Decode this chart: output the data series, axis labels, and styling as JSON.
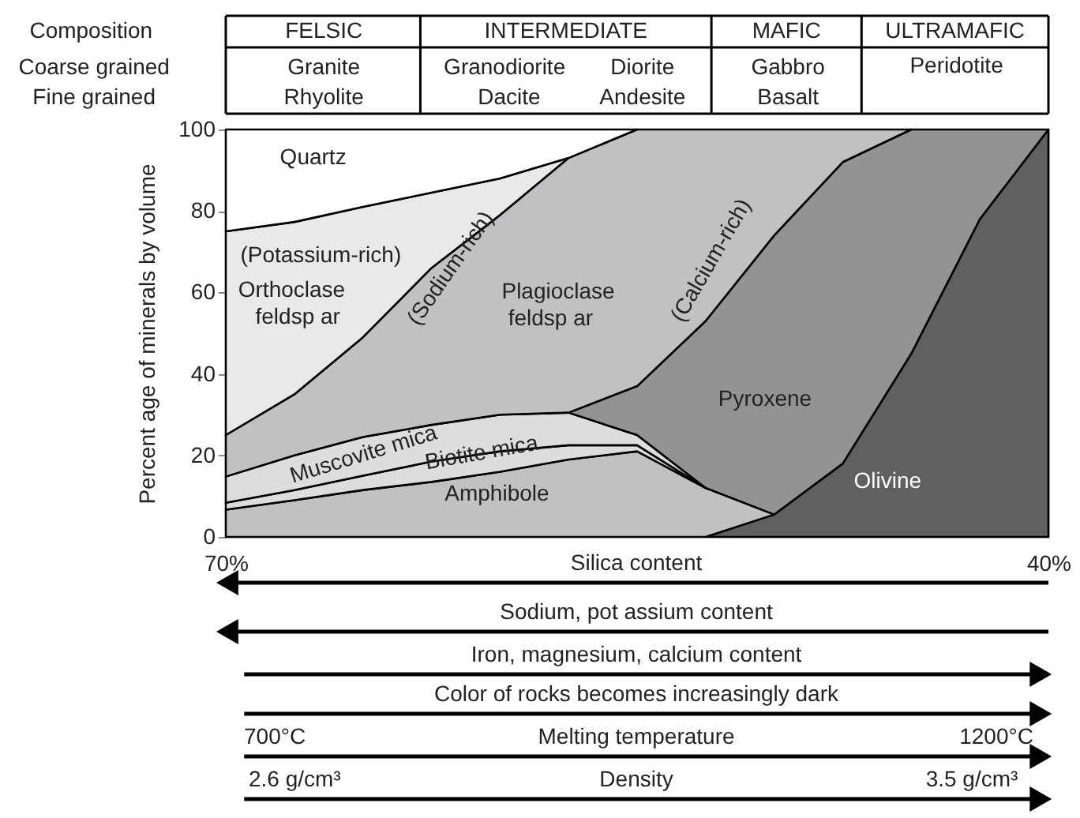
{
  "chart_data": {
    "type": "area",
    "stacked": true,
    "ylabel": "Percent age of minerals by volume",
    "x": [
      70,
      67.5,
      65,
      62.5,
      60,
      57.5,
      55,
      52.5,
      50,
      47.5,
      45,
      42.5,
      40
    ],
    "xlim": [
      70,
      40
    ],
    "xticks": [
      {
        "value": 70,
        "label": "70%"
      },
      {
        "value": 40,
        "label": "40%"
      }
    ],
    "ylim": [
      0,
      100
    ],
    "yticks": [
      0,
      20,
      40,
      60,
      80,
      100
    ],
    "legend": false,
    "series": [
      {
        "color": "#5f6062",
        "values": [
          null,
          null,
          null,
          null,
          null,
          null,
          null,
          0,
          5.5,
          18,
          45,
          78,
          100
        ]
      },
      {
        "color": "#c0c1c3",
        "values": [
          6.7,
          9,
          11.5,
          13.5,
          16,
          19,
          21,
          12,
          0,
          null,
          null,
          null,
          null
        ]
      },
      {
        "color": "#dcdddf",
        "values": [
          1.7,
          2.5,
          3.5,
          5,
          5,
          3.5,
          1.5,
          0,
          null,
          null,
          null,
          null,
          null
        ]
      },
      {
        "color": "#dcdddf",
        "values": [
          6.4,
          8.5,
          9.5,
          9,
          9,
          8,
          2.5,
          0,
          null,
          null,
          null,
          null,
          null
        ]
      },
      {
        "color": "#929395",
        "values": [
          null,
          null,
          null,
          null,
          null,
          0,
          12,
          41,
          68.5,
          74,
          55,
          22,
          0
        ]
      },
      {
        "color": "#c0c1c3",
        "values": [
          10.2,
          15,
          24.5,
          38.5,
          49,
          62.5,
          63,
          47,
          26,
          8,
          0,
          null,
          null
        ]
      },
      {
        "color": "#e8e9e9",
        "values": [
          50,
          42.3,
          32,
          18.5,
          9,
          0,
          null,
          null,
          null,
          null,
          null,
          null,
          null
        ]
      },
      {
        "color": "#ffffff",
        "values": [
          25,
          22.7,
          19,
          15.5,
          12,
          7,
          0,
          null,
          null,
          null,
          null,
          null,
          null
        ]
      }
    ],
    "annotations": [
      "Quartz",
      "(Potassium-rich)",
      "Orthoclase",
      "feldsp ar",
      "(Sodium-rich)",
      "Plagioclase",
      "feldsp ar",
      "(Calcium-rich)",
      "Pyroxene",
      "Olivine",
      "Muscovite mica",
      "Biotite mica",
      "Amphibole",
      "Composition",
      "Coarse grained",
      "Fine grained",
      "FELSIC",
      "INTERMEDIATE",
      "MAFIC",
      "ULTRAMAFIC",
      "Granite",
      "Rhyolite",
      "Granodiorite",
      "Dacite",
      "Diorite",
      "Andesite",
      "Gabbro",
      "Basalt",
      "Peridotite",
      "Silica content",
      "Sodium, pot assium content",
      "Iron, magnesium, calcium content",
      "Color of rocks becomes increasingly dark",
      "Melting temperature",
      "700°C",
      "1200°C",
      "Density",
      "2.6 g/cm³",
      "3.5 g/cm³"
    ]
  }
}
